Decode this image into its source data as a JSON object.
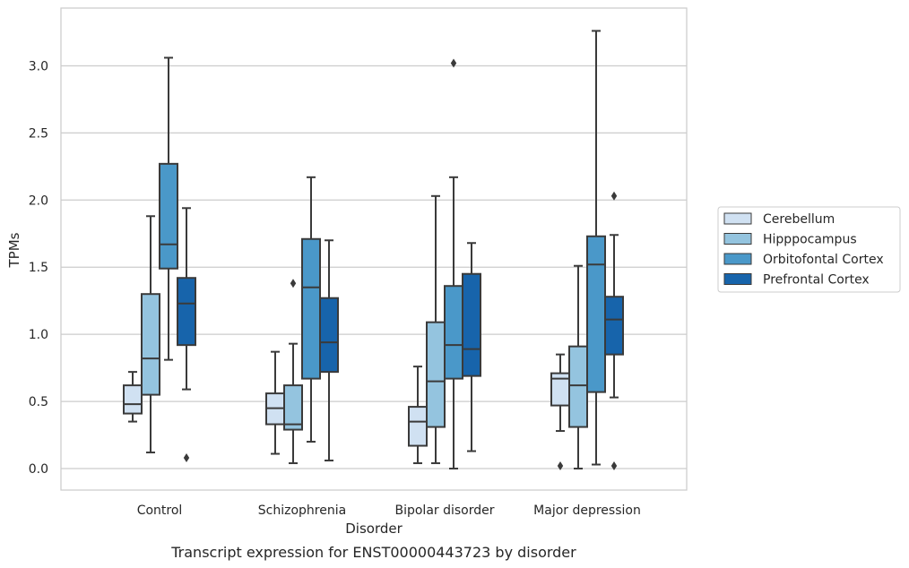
{
  "chart_data": {
    "type": "box",
    "xlabel": "Disorder",
    "ylabel": "TPMs",
    "caption": "Transcript expression for ENST00000443723 by disorder",
    "ylim": [
      -0.16,
      3.43
    ],
    "yticks": [
      0.0,
      0.5,
      1.0,
      1.5,
      2.0,
      2.5,
      3.0
    ],
    "ytick_labels": [
      "0.0",
      "0.5",
      "1.0",
      "1.5",
      "2.0",
      "2.5",
      "3.0"
    ],
    "grid": "horizontal",
    "legend_position": "right",
    "categories": [
      "Control",
      "Schizophrenia",
      "Bipolar disorder",
      "Major depression"
    ],
    "series": [
      {
        "name": "Cerebellum",
        "color": "#d0e1f2",
        "boxes": [
          {
            "whislo": 0.35,
            "q1": 0.41,
            "med": 0.48,
            "q3": 0.62,
            "whishi": 0.72,
            "fliers": []
          },
          {
            "whislo": 0.11,
            "q1": 0.33,
            "med": 0.45,
            "q3": 0.56,
            "whishi": 0.87,
            "fliers": []
          },
          {
            "whislo": 0.04,
            "q1": 0.17,
            "med": 0.35,
            "q3": 0.46,
            "whishi": 0.76,
            "fliers": []
          },
          {
            "whislo": 0.28,
            "q1": 0.47,
            "med": 0.67,
            "q3": 0.71,
            "whishi": 0.85,
            "fliers": [
              0.02
            ]
          }
        ]
      },
      {
        "name": "Hipppocampus",
        "color": "#94c4df",
        "boxes": [
          {
            "whislo": 0.12,
            "q1": 0.55,
            "med": 0.82,
            "q3": 1.3,
            "whishi": 1.88,
            "fliers": []
          },
          {
            "whislo": 0.04,
            "q1": 0.29,
            "med": 0.33,
            "q3": 0.62,
            "whishi": 0.93,
            "fliers": [
              1.38
            ]
          },
          {
            "whislo": 0.04,
            "q1": 0.31,
            "med": 0.65,
            "q3": 1.09,
            "whishi": 2.03,
            "fliers": []
          },
          {
            "whislo": 0.0,
            "q1": 0.31,
            "med": 0.62,
            "q3": 0.91,
            "whishi": 1.51,
            "fliers": []
          }
        ]
      },
      {
        "name": "Orbitofontal Cortex",
        "color": "#4a98c9",
        "boxes": [
          {
            "whislo": 0.81,
            "q1": 1.49,
            "med": 1.67,
            "q3": 2.27,
            "whishi": 3.06,
            "fliers": []
          },
          {
            "whislo": 0.2,
            "q1": 0.67,
            "med": 1.35,
            "q3": 1.71,
            "whishi": 2.17,
            "fliers": []
          },
          {
            "whislo": 0.0,
            "q1": 0.67,
            "med": 0.92,
            "q3": 1.36,
            "whishi": 2.17,
            "fliers": [
              3.02
            ]
          },
          {
            "whislo": 0.03,
            "q1": 0.57,
            "med": 1.52,
            "q3": 1.73,
            "whishi": 3.26,
            "fliers": []
          }
        ]
      },
      {
        "name": "Prefrontal Cortex",
        "color": "#1764ab",
        "boxes": [
          {
            "whislo": 0.59,
            "q1": 0.92,
            "med": 1.23,
            "q3": 1.42,
            "whishi": 1.94,
            "fliers": [
              0.08
            ]
          },
          {
            "whislo": 0.06,
            "q1": 0.72,
            "med": 0.94,
            "q3": 1.27,
            "whishi": 1.7,
            "fliers": []
          },
          {
            "whislo": 0.13,
            "q1": 0.69,
            "med": 0.89,
            "q3": 1.45,
            "whishi": 1.68,
            "fliers": []
          },
          {
            "whislo": 0.53,
            "q1": 0.85,
            "med": 1.11,
            "q3": 1.28,
            "whishi": 1.74,
            "fliers": [
              2.03,
              0.02
            ]
          }
        ]
      }
    ]
  }
}
